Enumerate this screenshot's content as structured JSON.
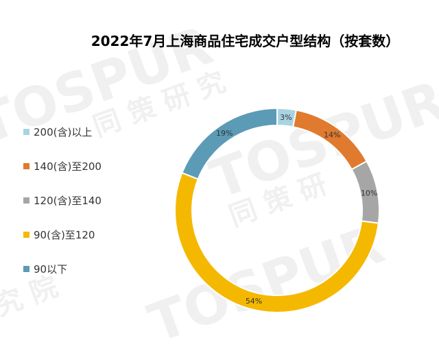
{
  "chart_data": {
    "type": "pie",
    "title": "2022年7月上海商品住宅成交户型结构（按套数）",
    "categories": [
      "200(含)以上",
      "140(含)至200",
      "120(含)至140",
      "90(含)至120",
      "90以下"
    ],
    "values": [
      3,
      14,
      10,
      54,
      19
    ],
    "labels": [
      "3%",
      "14%",
      "10%",
      "54%",
      "19%"
    ],
    "colors": [
      "#a9d3e3",
      "#e07a2e",
      "#a6a6a6",
      "#f5b800",
      "#5b9bb6"
    ],
    "donut": true,
    "legend": "left"
  },
  "watermark": {
    "logo_text": "TOSPUR",
    "cn_text": "同策研究院"
  }
}
